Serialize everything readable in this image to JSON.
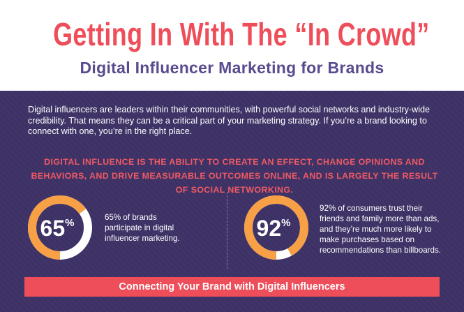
{
  "header": {
    "title": "Getting In With The “In Crowd”",
    "subtitle": "Digital Influencer Marketing for Brands"
  },
  "intro": "Digital influencers are leaders within their communities, with powerful social networks and industry-wide credibility. That means they can be a critical part of your marketing strategy. If you’re a brand looking to connect with one, you’re in the right place.",
  "highlight": "DIGITAL INFLUENCE IS THE ABILITY TO CREATE AN EFFECT, CHANGE OPINIONS AND BEHAVIORS, AND DRIVE MEASURABLE OUTCOMES ONLINE, AND IS LARGELY THE RESULT OF SOCIAL NETWORKING.",
  "stats": [
    {
      "value": 65,
      "unit": "%",
      "text": "65% of brands participate in digital influencer marketing."
    },
    {
      "value": 92,
      "unit": "%",
      "text": "92% of consumers trust their friends and family more than ads, and they’re much more likely to make purchases based on recommendations than billboards."
    }
  ],
  "footer_bar": "Connecting Your Brand with Digital Influencers"
}
